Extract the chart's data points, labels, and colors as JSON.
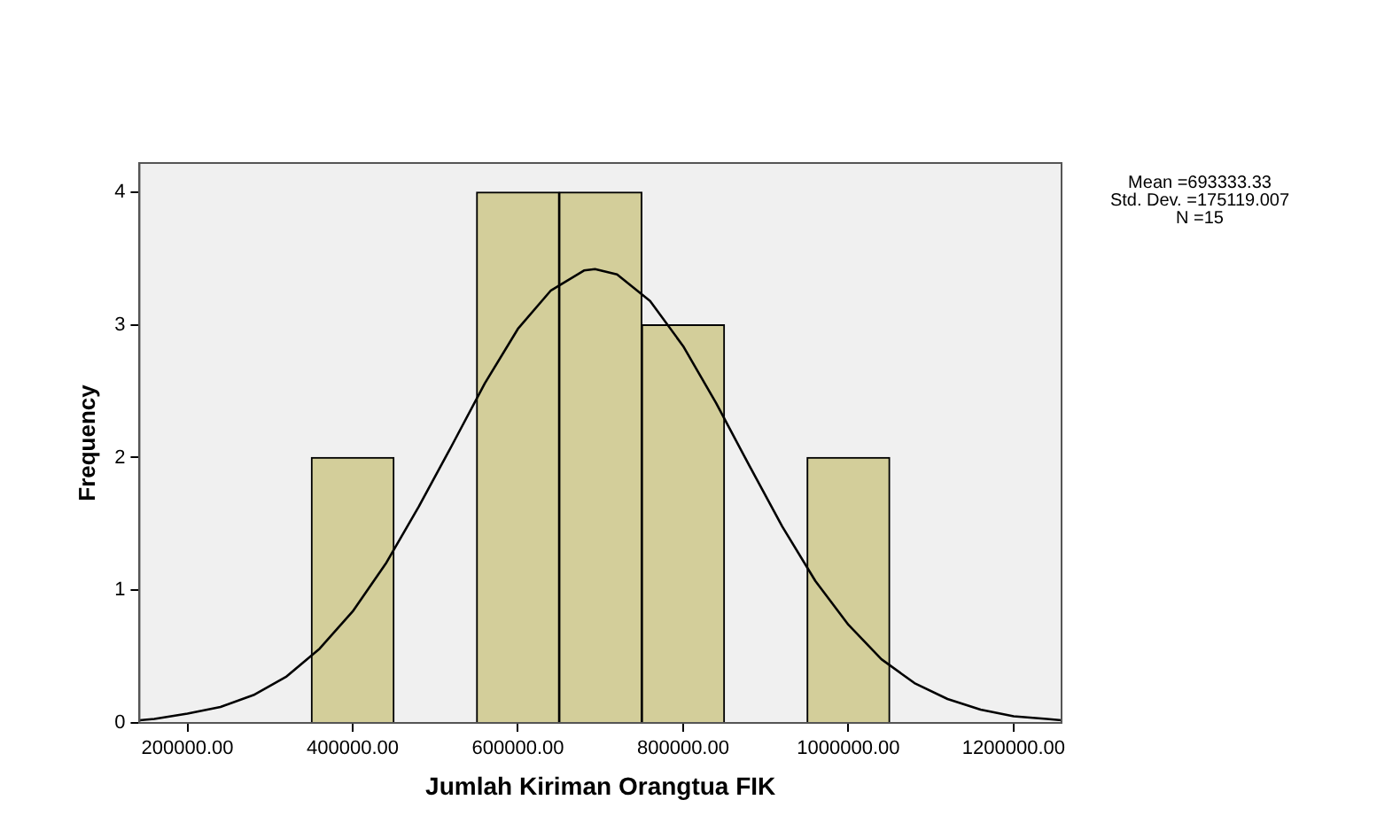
{
  "chart_data": {
    "type": "histogram",
    "xlabel": "Jumlah Kiriman Orangtua FIK",
    "ylabel": "Frequency",
    "bins": [
      350000,
      450000,
      550000,
      650000,
      750000,
      850000,
      950000,
      1050000
    ],
    "values": [
      2,
      0,
      4,
      4,
      3,
      0,
      2
    ],
    "color": "#d3ce9a",
    "series": [
      {
        "type": "line",
        "color": "#000000",
        "x": [
          142000,
          160000,
          200000,
          240000,
          280000,
          320000,
          360000,
          400000,
          440000,
          480000,
          520000,
          560000,
          600000,
          640000,
          680000,
          693333,
          720000,
          760000,
          800000,
          840000,
          880000,
          920000,
          960000,
          1000000,
          1040000,
          1080000,
          1120000,
          1160000,
          1200000,
          1240000,
          1258000
        ],
        "values": [
          0.02,
          0.03,
          0.07,
          0.12,
          0.21,
          0.35,
          0.56,
          0.84,
          1.2,
          1.63,
          2.09,
          2.56,
          2.97,
          3.26,
          3.41,
          3.42,
          3.38,
          3.18,
          2.84,
          2.41,
          1.94,
          1.48,
          1.07,
          0.74,
          0.48,
          0.3,
          0.18,
          0.1,
          0.05,
          0.03,
          0.02
        ]
      }
    ],
    "xlim": [
      142000,
      1258000
    ],
    "ylim": [
      0,
      4.22
    ],
    "xticks": [
      {
        "value": 200000,
        "label": "200000.00"
      },
      {
        "value": 400000,
        "label": "400000.00"
      },
      {
        "value": 600000,
        "label": "600000.00"
      },
      {
        "value": 800000,
        "label": "800000.00"
      },
      {
        "value": 1000000,
        "label": "1000000.00"
      },
      {
        "value": 1200000,
        "label": "1200000.00"
      }
    ],
    "yticks": [
      0,
      1,
      2,
      3,
      4
    ],
    "grid": false,
    "legend": false,
    "annotations": [
      "Mean =693333.33",
      "Std. Dev. =175119.007",
      "N =15"
    ]
  }
}
